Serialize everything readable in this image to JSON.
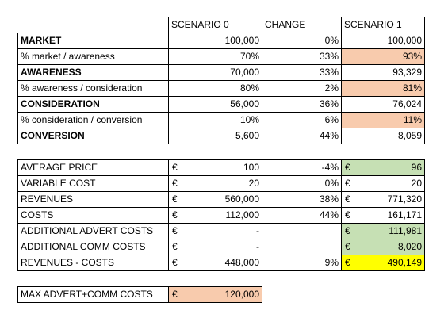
{
  "table1": {
    "header": [
      "SCENARIO 0",
      "CHANGE",
      "SCENARIO 1"
    ],
    "rows": [
      {
        "cells": [
          "MARKET",
          "100,000",
          "0%",
          "100,000"
        ],
        "bold": true
      },
      {
        "cells": [
          "% market / awareness",
          "70%",
          "33%",
          "93%"
        ],
        "fill": "#f8cbad"
      },
      {
        "cells": [
          "AWARENESS",
          "70,000",
          "33%",
          "93,329"
        ],
        "bold": true
      },
      {
        "cells": [
          "% awareness / consideration",
          "80%",
          "2%",
          "81%"
        ],
        "fill": "#f8cbad"
      },
      {
        "cells": [
          "CONSIDERATION",
          "56,000",
          "36%",
          "76,024"
        ],
        "bold": true
      },
      {
        "cells": [
          "% consideration / conversion",
          "10%",
          "6%",
          "11%"
        ],
        "fill": "#f8cbad"
      },
      {
        "cells": [
          "CONVERSION",
          "5,600",
          "44%",
          "8,059"
        ],
        "bold": true
      }
    ]
  },
  "table2": {
    "rows": [
      {
        "cells": [
          "AVERAGE PRICE",
          "€",
          "100",
          "-4%",
          "€",
          "96"
        ],
        "fill": "#c6e0b4"
      },
      {
        "cells": [
          "VARIABLE COST",
          "€",
          "20",
          "0%",
          "€",
          "20"
        ]
      },
      {
        "cells": [
          "REVENUES",
          "€",
          "560,000",
          "38%",
          "€",
          "771,320"
        ]
      },
      {
        "cells": [
          "COSTS",
          "€",
          "112,000",
          "44%",
          "€",
          "161,171"
        ]
      },
      {
        "cells": [
          "ADDITIONAL ADVERT COSTS",
          "€",
          "-",
          "",
          "€",
          "111,981"
        ],
        "fill": "#c6e0b4"
      },
      {
        "cells": [
          "ADDITIONAL COMM COSTS",
          "€",
          "-",
          "",
          "€",
          "8,020"
        ],
        "fill": "#c6e0b4"
      },
      {
        "cells": [
          "REVENUES - COSTS",
          "€",
          "448,000",
          "9%",
          "€",
          "490,149"
        ],
        "fill": "#ffff00"
      }
    ]
  },
  "table3": {
    "cells": [
      "MAX ADVERT+COMM COSTS",
      "€",
      "120,000"
    ],
    "fill": "#f8cbad"
  }
}
